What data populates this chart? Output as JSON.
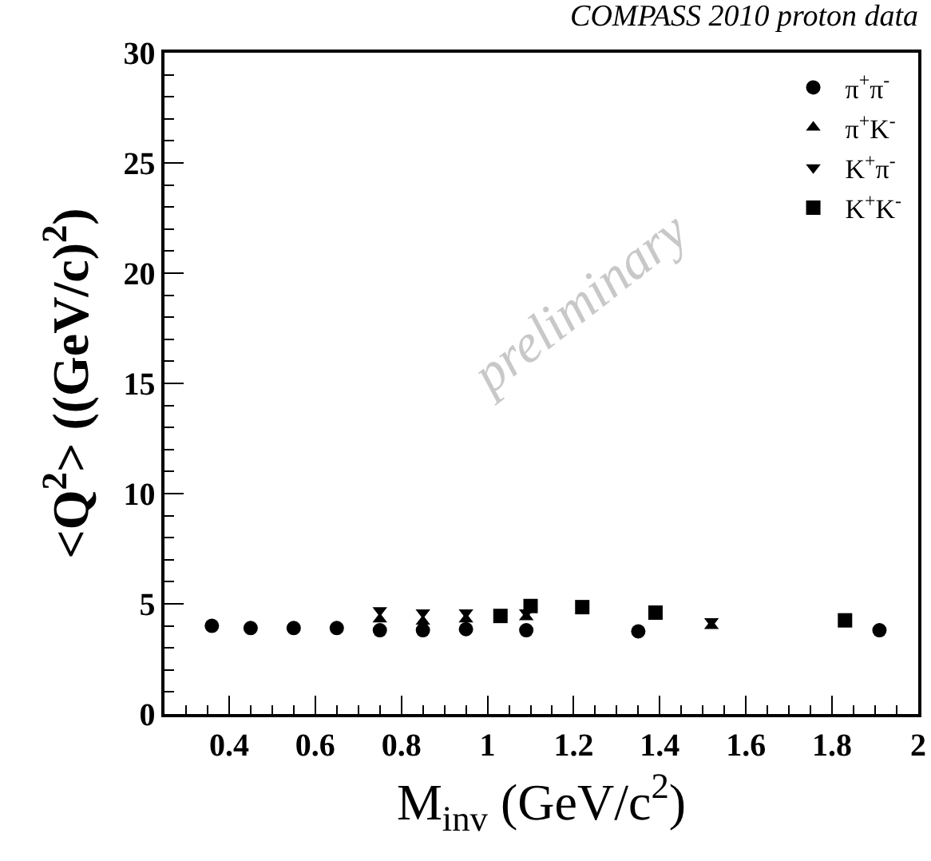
{
  "chart_data": {
    "type": "scatter",
    "title": "COMPASS 2010 proton data",
    "xlabel": "M$_{inv}$ (GeV/c$^{2}$)",
    "ylabel": "<Q$^{2}$> ((GeV/c)$^{2}$)",
    "annotations": [
      "preliminary"
    ],
    "xlim": [
      0.25,
      2.0
    ],
    "xticks": [
      0.4,
      0.6,
      0.8,
      1,
      1.2,
      1.4,
      1.6,
      1.8,
      2
    ],
    "ylim": [
      0,
      30
    ],
    "yticks": [
      0,
      5,
      10,
      15,
      20,
      25,
      30
    ],
    "grid": false,
    "legend": "top right",
    "series": [
      {
        "name": "π$^{+}$π$^{-}$",
        "color": "#000000",
        "marker": "circle",
        "x": [
          0.36,
          0.45,
          0.55,
          0.65,
          0.75,
          0.85,
          0.95,
          1.09,
          1.35,
          1.91
        ],
        "values": [
          4.0,
          3.9,
          3.9,
          3.9,
          3.8,
          3.8,
          3.85,
          3.8,
          3.75,
          3.8
        ]
      },
      {
        "name": "π$^{+}$K$^{-}$",
        "color": "#000000",
        "marker": "triangle",
        "x": [
          0.75,
          0.85,
          0.95,
          1.09,
          1.52
        ],
        "values": [
          4.3,
          4.2,
          4.3,
          4.4,
          4.0
        ]
      },
      {
        "name": "K$^{+}$π$^{-}$",
        "color": "#000000",
        "marker": "triangle-down",
        "x": [
          0.75,
          0.85,
          0.95,
          1.09,
          1.52
        ],
        "values": [
          4.7,
          4.6,
          4.6,
          4.6,
          4.2
        ]
      },
      {
        "name": "K$^{+}$K$^{-}$",
        "color": "#000000",
        "marker": "square",
        "x": [
          1.03,
          1.1,
          1.22,
          1.39,
          1.83
        ],
        "values": [
          4.45,
          4.9,
          4.85,
          4.6,
          4.25
        ]
      }
    ]
  }
}
